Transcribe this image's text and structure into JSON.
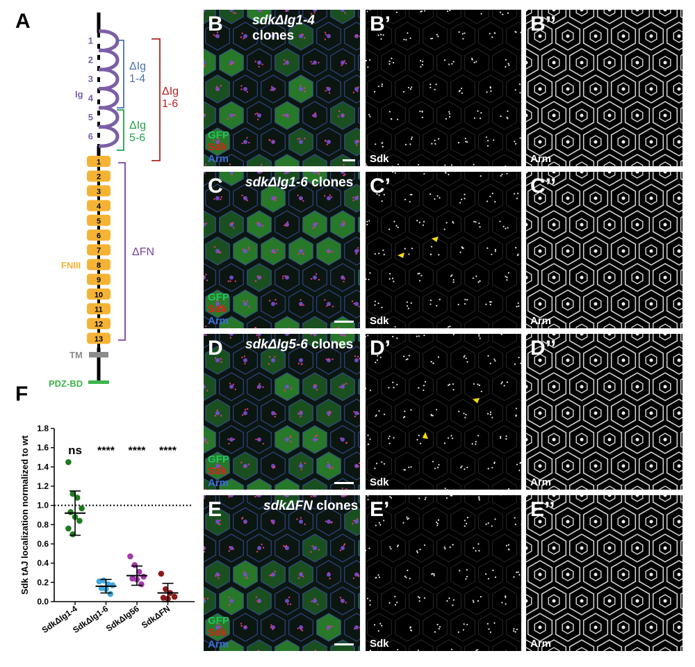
{
  "figure": {
    "panel_letters": {
      "A": "A",
      "B": "B",
      "B1": "B’",
      "B2": "B’’",
      "C": "C",
      "C1": "C’",
      "C2": "C’’",
      "D": "D",
      "D1": "D’",
      "D2": "D’’",
      "E": "E",
      "E1": "E’",
      "E2": "E’’",
      "F": "F"
    },
    "diagram": {
      "ig_label": "Ig",
      "fniii_label": "FNIII",
      "tm_label": "TM",
      "pdz_label": "PDZ-BD",
      "ig_numbers": [
        "1",
        "2",
        "3",
        "4",
        "5",
        "6"
      ],
      "fn_numbers": [
        "1",
        "2",
        "3",
        "4",
        "5",
        "6",
        "7",
        "8",
        "9",
        "10",
        "11",
        "12",
        "13"
      ],
      "bracket_ig14": [
        "ΔIg",
        "1-4"
      ],
      "bracket_ig56": [
        "ΔIg",
        "5-6"
      ],
      "bracket_ig16": [
        "ΔIg",
        "1-6"
      ],
      "bracket_fn": "ΔFN",
      "colors": {
        "ig": "#7b5ea7",
        "fn": "#f5b335",
        "tm": "#8c8c8c",
        "pdz": "#3db54a",
        "b14": "#4a72b0",
        "b56": "#23a04a",
        "b16": "#b22222",
        "bfn": "#7b3fa0"
      }
    },
    "rows": [
      {
        "title_italic": "sdkΔIg1-4",
        "title_plain": " clones"
      },
      {
        "title_italic": "sdkΔIg1-6",
        "title_plain": " clones"
      },
      {
        "title_italic": "sdkΔIg5-6",
        "title_plain": " clones"
      },
      {
        "title_italic": "sdkΔFN",
        "title_plain": " clones"
      }
    ],
    "channels": {
      "gfp": "GFP",
      "sdk": "Sdk",
      "arm": "Arm"
    },
    "single_labels": {
      "sdk": "Sdk",
      "arm": "Arm"
    }
  },
  "chart_data": {
    "type": "scatter",
    "ylabel": "Sdk tAJ localization normalized to wt",
    "categories": [
      "SdkΔIg1-4",
      "SdkΔIg1-6",
      "SdkΔIg56",
      "SdkΔFN"
    ],
    "yticks": [
      "0.0",
      "0.2",
      "0.4",
      "0.6",
      "0.8",
      "1.0",
      "1.2",
      "1.4",
      "1.6",
      "1.8"
    ],
    "ylim": [
      0,
      1.8
    ],
    "reference_line": 1.0,
    "significance": [
      "ns",
      "****",
      "****",
      "****"
    ],
    "colors": [
      "#1e7b1e",
      "#3fa9e0",
      "#a03ca8",
      "#8b1a1a"
    ],
    "series": [
      {
        "points": [
          1.45,
          1.12,
          1.08,
          0.97,
          0.93,
          0.88,
          0.84,
          0.76,
          0.7
        ],
        "mean": 0.92,
        "sd": [
          0.69,
          1.15
        ]
      },
      {
        "points": [
          0.21,
          0.22,
          0.18,
          0.17,
          0.14,
          0.13,
          0.08
        ],
        "mean": 0.16,
        "sd": [
          0.09,
          0.23
        ]
      },
      {
        "points": [
          0.47,
          0.38,
          0.31,
          0.26,
          0.24,
          0.23,
          0.18
        ],
        "mean": 0.27,
        "sd": [
          0.17,
          0.37
        ]
      },
      {
        "points": [
          0.29,
          0.13,
          0.09,
          0.05,
          0.04,
          0.03
        ],
        "mean": 0.09,
        "sd": [
          0.0,
          0.19
        ]
      }
    ]
  }
}
